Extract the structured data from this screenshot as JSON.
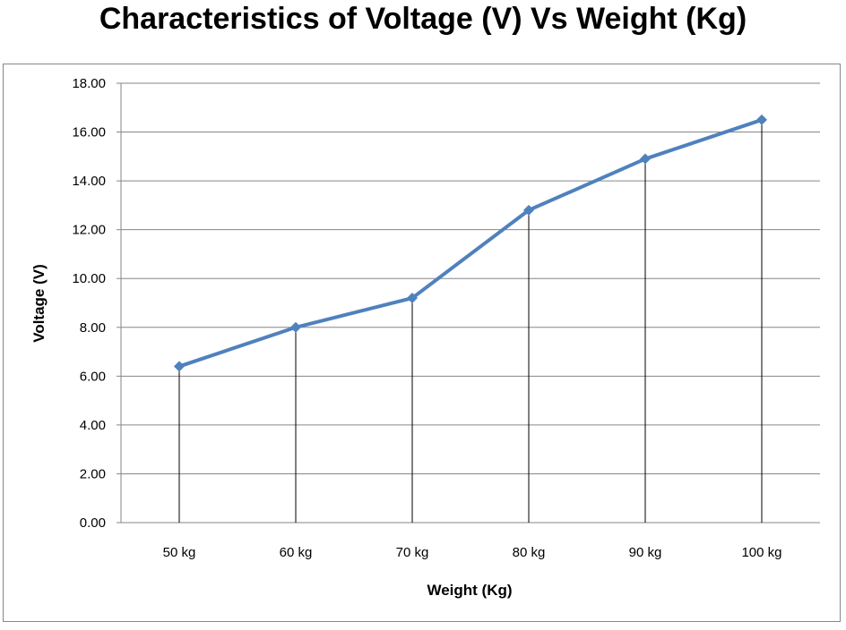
{
  "chart_data": {
    "type": "line",
    "title": "Characteristics of Voltage (V) Vs Weight (Kg)",
    "xlabel": "Weight (Kg)",
    "ylabel": "Voltage (V)",
    "categories": [
      "50 kg",
      "60 kg",
      "70 kg",
      "80 kg",
      "90 kg",
      "100 kg"
    ],
    "series": [
      {
        "name": "Voltage",
        "values": [
          6.4,
          8.0,
          9.2,
          12.8,
          14.9,
          16.5
        ],
        "color": "#4f81bd"
      }
    ],
    "ylim": [
      0,
      18
    ],
    "ytick_labels": [
      "0.00",
      "2.00",
      "4.00",
      "6.00",
      "8.00",
      "10.00",
      "12.00",
      "14.00",
      "16.00",
      "18.00"
    ],
    "grid": true,
    "drop_lines": true,
    "legend": "none"
  }
}
